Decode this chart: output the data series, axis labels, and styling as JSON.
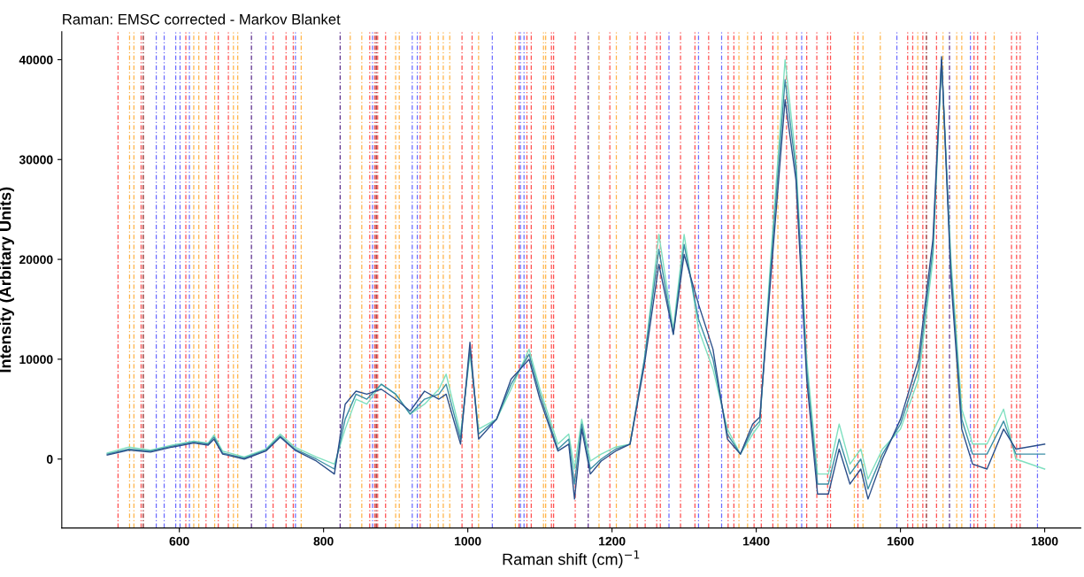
{
  "chart_data": {
    "type": "line",
    "title": "Raman: EMSC corrected - Markov Blanket",
    "xlabel": "Raman shift (cm)$^{−1}$",
    "ylabel": "Intensity (Arbitary Units)",
    "xlim": [
      437,
      1850
    ],
    "ylim": [
      -6900,
      42800
    ],
    "xticks": [
      600,
      800,
      1000,
      1200,
      1400,
      1600,
      1800
    ],
    "yticks": [
      0,
      10000,
      20000,
      30000,
      40000
    ],
    "grid": false,
    "legend": false,
    "marker": "none",
    "line_style": "solid",
    "x": [
      500,
      530,
      560,
      590,
      620,
      640,
      648,
      660,
      690,
      720,
      740,
      760,
      790,
      815,
      830,
      845,
      860,
      880,
      900,
      920,
      940,
      960,
      970,
      990,
      1003,
      1015,
      1040,
      1060,
      1085,
      1100,
      1125,
      1140,
      1148,
      1158,
      1170,
      1185,
      1205,
      1225,
      1245,
      1265,
      1285,
      1300,
      1320,
      1340,
      1360,
      1378,
      1395,
      1405,
      1420,
      1440,
      1455,
      1470,
      1485,
      1500,
      1515,
      1530,
      1545,
      1555,
      1575,
      1600,
      1625,
      1645,
      1657,
      1670,
      1685,
      1700,
      1720,
      1743,
      1760,
      1800
    ],
    "series": [
      {
        "color": "#7fe0c0",
        "values": [
          600,
          1200,
          900,
          1400,
          1800,
          1600,
          2400,
          800,
          200,
          1000,
          2500,
          1200,
          200,
          -500,
          3000,
          6000,
          5500,
          7500,
          6500,
          4500,
          5500,
          7000,
          8500,
          2500,
          10500,
          3000,
          4000,
          7000,
          11000,
          7000,
          1500,
          2500,
          -1000,
          4000,
          -200,
          500,
          1200,
          1500,
          10000,
          22500,
          13000,
          22500,
          13000,
          9000,
          3000,
          500,
          2500,
          3500,
          20000,
          40000,
          30000,
          10000,
          -1500,
          -1500,
          3500,
          -500,
          1000,
          -2000,
          1000,
          3000,
          8000,
          20000,
          40000,
          20000,
          5000,
          1500,
          1500,
          5000,
          0,
          -1000
        ]
      },
      {
        "color": "#3b8ea5",
        "values": [
          500,
          1000,
          800,
          1300,
          1700,
          1500,
          2200,
          600,
          100,
          900,
          2300,
          1000,
          0,
          -1000,
          4000,
          6500,
          6000,
          7500,
          6500,
          4500,
          6000,
          6500,
          7500,
          2000,
          11000,
          2500,
          4000,
          7500,
          10500,
          6500,
          1000,
          2000,
          -2500,
          3500,
          -1000,
          0,
          1000,
          1500,
          10000,
          21000,
          12500,
          21500,
          14000,
          10000,
          2500,
          500,
          3000,
          3800,
          19000,
          38000,
          29000,
          9000,
          -2500,
          -2500,
          2000,
          -1500,
          0,
          -3000,
          500,
          3500,
          9000,
          21000,
          40000,
          19000,
          4000,
          500,
          500,
          3800,
          500,
          500
        ]
      },
      {
        "color": "#2c4f8a",
        "values": [
          400,
          900,
          700,
          1200,
          1600,
          1400,
          2000,
          500,
          0,
          800,
          2200,
          900,
          -200,
          -1500,
          5500,
          6800,
          6500,
          7000,
          6000,
          4800,
          6800,
          6000,
          6500,
          1500,
          11700,
          2000,
          4000,
          8000,
          10000,
          6000,
          800,
          1500,
          -4000,
          3000,
          -1500,
          -200,
          800,
          1500,
          9500,
          19500,
          12500,
          20500,
          15500,
          11000,
          2000,
          500,
          3500,
          4200,
          18000,
          36000,
          28000,
          8000,
          -3500,
          -3500,
          1000,
          -2500,
          -1000,
          -4000,
          0,
          4000,
          10000,
          22000,
          40300,
          18000,
          3000,
          -500,
          -1000,
          3000,
          1000,
          1500
        ]
      }
    ],
    "ref_lines": [
      {
        "axis": "x",
        "value": 515,
        "color": "#ff4d4d",
        "line_style": "dashed"
      },
      {
        "axis": "x",
        "value": 531,
        "color": "#ffb347",
        "line_style": "dashed"
      },
      {
        "axis": "x",
        "value": 537,
        "color": "#ffb347",
        "line_style": "dashed"
      },
      {
        "axis": "x",
        "value": 547,
        "color": "#ff4d4d",
        "line_style": "dashed"
      },
      {
        "axis": "x",
        "value": 550,
        "color": "#8b1a1a",
        "line_style": "dashed"
      },
      {
        "axis": "x",
        "value": 568,
        "color": "#6a6aff",
        "line_style": "dashed"
      },
      {
        "axis": "x",
        "value": 579,
        "color": "#6a6aff",
        "line_style": "dashed"
      },
      {
        "axis": "x",
        "value": 595,
        "color": "#6a6aff",
        "line_style": "dashed"
      },
      {
        "axis": "x",
        "value": 601,
        "color": "#6a6aff",
        "line_style": "dashed"
      },
      {
        "axis": "x",
        "value": 609,
        "color": "#ff4d4d",
        "line_style": "dashed"
      },
      {
        "axis": "x",
        "value": 614,
        "color": "#6a6aff",
        "line_style": "dashed"
      },
      {
        "axis": "x",
        "value": 620,
        "color": "#ffb347",
        "line_style": "dashed"
      },
      {
        "axis": "x",
        "value": 627,
        "color": "#ffb347",
        "line_style": "dashed"
      },
      {
        "axis": "x",
        "value": 637,
        "color": "#ff4d4d",
        "line_style": "dashed"
      },
      {
        "axis": "x",
        "value": 649,
        "color": "#ffb347",
        "line_style": "dashed"
      },
      {
        "axis": "x",
        "value": 654,
        "color": "#ff4d4d",
        "line_style": "dashed"
      },
      {
        "axis": "x",
        "value": 668,
        "color": "#ff4d4d",
        "line_style": "dashed"
      },
      {
        "axis": "x",
        "value": 675,
        "color": "#ffb347",
        "line_style": "dashed"
      },
      {
        "axis": "x",
        "value": 681,
        "color": "#ffb347",
        "line_style": "dashed"
      },
      {
        "axis": "x",
        "value": 700,
        "color": "#5a2a8a",
        "line_style": "dashed"
      },
      {
        "axis": "x",
        "value": 720,
        "color": "#6a6aff",
        "line_style": "dashed"
      },
      {
        "axis": "x",
        "value": 730,
        "color": "#ff4d4d",
        "line_style": "dashed"
      },
      {
        "axis": "x",
        "value": 748,
        "color": "#ff4d4d",
        "line_style": "dashed"
      },
      {
        "axis": "x",
        "value": 758,
        "color": "#ff4d4d",
        "line_style": "dashed"
      },
      {
        "axis": "x",
        "value": 761,
        "color": "#6a6aff",
        "line_style": "dashed"
      },
      {
        "axis": "x",
        "value": 769,
        "color": "#ffb347",
        "line_style": "dashed"
      },
      {
        "axis": "x",
        "value": 823,
        "color": "#5a2a8a",
        "line_style": "dashed"
      },
      {
        "axis": "x",
        "value": 837,
        "color": "#ffb347",
        "line_style": "dashed"
      },
      {
        "axis": "x",
        "value": 853,
        "color": "#ffb347",
        "line_style": "dashed"
      },
      {
        "axis": "x",
        "value": 864,
        "color": "#ff4d4d",
        "line_style": "dashed"
      },
      {
        "axis": "x",
        "value": 868,
        "color": "#6a6aff",
        "line_style": "dashed"
      },
      {
        "axis": "x",
        "value": 871,
        "color": "#ff4d4d",
        "line_style": "dashed"
      },
      {
        "axis": "x",
        "value": 873,
        "color": "#8b1a1a",
        "line_style": "dashed"
      },
      {
        "axis": "x",
        "value": 875,
        "color": "#ff4d4d",
        "line_style": "dashed"
      },
      {
        "axis": "x",
        "value": 886,
        "color": "#ff4d4d",
        "line_style": "dashed"
      },
      {
        "axis": "x",
        "value": 900,
        "color": "#ffb347",
        "line_style": "dashed"
      },
      {
        "axis": "x",
        "value": 905,
        "color": "#ffb347",
        "line_style": "dashed"
      },
      {
        "axis": "x",
        "value": 923,
        "color": "#6a6aff",
        "line_style": "dashed"
      },
      {
        "axis": "x",
        "value": 930,
        "color": "#6a6aff",
        "line_style": "dashed"
      },
      {
        "axis": "x",
        "value": 934,
        "color": "#ff4d4d",
        "line_style": "dashed"
      },
      {
        "axis": "x",
        "value": 948,
        "color": "#ffb347",
        "line_style": "dashed"
      },
      {
        "axis": "x",
        "value": 959,
        "color": "#ffb347",
        "line_style": "dashed"
      },
      {
        "axis": "x",
        "value": 966,
        "color": "#ffb347",
        "line_style": "dashed"
      },
      {
        "axis": "x",
        "value": 975,
        "color": "#ffb347",
        "line_style": "dashed"
      },
      {
        "axis": "x",
        "value": 992,
        "color": "#ff4d4d",
        "line_style": "dashed"
      },
      {
        "axis": "x",
        "value": 1006,
        "color": "#ff4d4d",
        "line_style": "dashed"
      },
      {
        "axis": "x",
        "value": 1015,
        "color": "#ffb347",
        "line_style": "dashed"
      },
      {
        "axis": "x",
        "value": 1034,
        "color": "#6a6aff",
        "line_style": "dashed"
      },
      {
        "axis": "x",
        "value": 1066,
        "color": "#ffb347",
        "line_style": "dashed"
      },
      {
        "axis": "x",
        "value": 1071,
        "color": "#ff4d4d",
        "line_style": "dashed"
      },
      {
        "axis": "x",
        "value": 1073,
        "color": "#6a6aff",
        "line_style": "dashed"
      },
      {
        "axis": "x",
        "value": 1078,
        "color": "#6a6aff",
        "line_style": "dashed"
      },
      {
        "axis": "x",
        "value": 1082,
        "color": "#ff4d4d",
        "line_style": "dashed"
      },
      {
        "axis": "x",
        "value": 1088,
        "color": "#ff4d4d",
        "line_style": "dashed"
      },
      {
        "axis": "x",
        "value": 1105,
        "color": "#ffb347",
        "line_style": "dashed"
      },
      {
        "axis": "x",
        "value": 1108,
        "color": "#ffb347",
        "line_style": "dashed"
      },
      {
        "axis": "x",
        "value": 1116,
        "color": "#ff4d4d",
        "line_style": "dashed"
      },
      {
        "axis": "x",
        "value": 1119,
        "color": "#ff4d4d",
        "line_style": "dashed"
      },
      {
        "axis": "x",
        "value": 1149,
        "color": "#ff4d4d",
        "line_style": "dashed"
      },
      {
        "axis": "x",
        "value": 1167,
        "color": "#5a2a8a",
        "line_style": "dashed"
      },
      {
        "axis": "x",
        "value": 1182,
        "color": "#ffb347",
        "line_style": "dashed"
      },
      {
        "axis": "x",
        "value": 1197,
        "color": "#ff4d4d",
        "line_style": "dashed"
      },
      {
        "axis": "x",
        "value": 1206,
        "color": "#ffb347",
        "line_style": "dashed"
      },
      {
        "axis": "x",
        "value": 1225,
        "color": "#ffb347",
        "line_style": "dashed"
      },
      {
        "axis": "x",
        "value": 1235,
        "color": "#ff4d4d",
        "line_style": "dashed"
      },
      {
        "axis": "x",
        "value": 1246,
        "color": "#ff4d4d",
        "line_style": "dashed"
      },
      {
        "axis": "x",
        "value": 1262,
        "color": "#ff4d4d",
        "line_style": "dashed"
      },
      {
        "axis": "x",
        "value": 1267,
        "color": "#ff4d4d",
        "line_style": "dashed"
      },
      {
        "axis": "x",
        "value": 1279,
        "color": "#6a6aff",
        "line_style": "dashed"
      },
      {
        "axis": "x",
        "value": 1295,
        "color": "#ff4d4d",
        "line_style": "dashed"
      },
      {
        "axis": "x",
        "value": 1315,
        "color": "#ff4d4d",
        "line_style": "dashed"
      },
      {
        "axis": "x",
        "value": 1320,
        "color": "#6a6aff",
        "line_style": "dashed"
      },
      {
        "axis": "x",
        "value": 1334,
        "color": "#ff4d4d",
        "line_style": "dashed"
      },
      {
        "axis": "x",
        "value": 1352,
        "color": "#6a6aff",
        "line_style": "dashed"
      },
      {
        "axis": "x",
        "value": 1361,
        "color": "#ff4d4d",
        "line_style": "dashed"
      },
      {
        "axis": "x",
        "value": 1369,
        "color": "#ff4d4d",
        "line_style": "dashed"
      },
      {
        "axis": "x",
        "value": 1376,
        "color": "#ffb347",
        "line_style": "dashed"
      },
      {
        "axis": "x",
        "value": 1388,
        "color": "#ffb347",
        "line_style": "dashed"
      },
      {
        "axis": "x",
        "value": 1397,
        "color": "#ff4d4d",
        "line_style": "dashed"
      },
      {
        "axis": "x",
        "value": 1407,
        "color": "#ff4d4d",
        "line_style": "dashed"
      },
      {
        "axis": "x",
        "value": 1423,
        "color": "#ff4d4d",
        "line_style": "dashed"
      },
      {
        "axis": "x",
        "value": 1430,
        "color": "#ffb347",
        "line_style": "dashed"
      },
      {
        "axis": "x",
        "value": 1442,
        "color": "#ff4d4d",
        "line_style": "dashed"
      },
      {
        "axis": "x",
        "value": 1456,
        "color": "#ff4d4d",
        "line_style": "dashed"
      },
      {
        "axis": "x",
        "value": 1463,
        "color": "#6a6aff",
        "line_style": "dashed"
      },
      {
        "axis": "x",
        "value": 1470,
        "color": "#ff4d4d",
        "line_style": "dashed"
      },
      {
        "axis": "x",
        "value": 1484,
        "color": "#ff4d4d",
        "line_style": "dashed"
      },
      {
        "axis": "x",
        "value": 1499,
        "color": "#ff4d4d",
        "line_style": "dashed"
      },
      {
        "axis": "x",
        "value": 1503,
        "color": "#ff4d4d",
        "line_style": "dashed"
      },
      {
        "axis": "x",
        "value": 1536,
        "color": "#ffb347",
        "line_style": "dashed"
      },
      {
        "axis": "x",
        "value": 1541,
        "color": "#ff4d4d",
        "line_style": "dashed"
      },
      {
        "axis": "x",
        "value": 1548,
        "color": "#ffb347",
        "line_style": "dashed"
      },
      {
        "axis": "x",
        "value": 1572,
        "color": "#ffb347",
        "line_style": "dashed"
      },
      {
        "axis": "x",
        "value": 1595,
        "color": "#6a6aff",
        "line_style": "dashed"
      },
      {
        "axis": "x",
        "value": 1610,
        "color": "#ff4d4d",
        "line_style": "dashed"
      },
      {
        "axis": "x",
        "value": 1617,
        "color": "#ff4d4d",
        "line_style": "dashed"
      },
      {
        "axis": "x",
        "value": 1624,
        "color": "#ffb347",
        "line_style": "dashed"
      },
      {
        "axis": "x",
        "value": 1631,
        "color": "#ff4d4d",
        "line_style": "dashed"
      },
      {
        "axis": "x",
        "value": 1636,
        "color": "#8b1a1a",
        "line_style": "dashed"
      },
      {
        "axis": "x",
        "value": 1650,
        "color": "#ff4d4d",
        "line_style": "dashed"
      },
      {
        "axis": "x",
        "value": 1659,
        "color": "#ffb347",
        "line_style": "dashed"
      },
      {
        "axis": "x",
        "value": 1668,
        "color": "#5a2a8a",
        "line_style": "dashed"
      },
      {
        "axis": "x",
        "value": 1678,
        "color": "#ffb347",
        "line_style": "dashed"
      },
      {
        "axis": "x",
        "value": 1685,
        "color": "#ffb347",
        "line_style": "dashed"
      },
      {
        "axis": "x",
        "value": 1697,
        "color": "#6a6aff",
        "line_style": "dashed"
      },
      {
        "axis": "x",
        "value": 1702,
        "color": "#ff4d4d",
        "line_style": "dashed"
      },
      {
        "axis": "x",
        "value": 1707,
        "color": "#ff4d4d",
        "line_style": "dashed"
      },
      {
        "axis": "x",
        "value": 1718,
        "color": "#ff4d4d",
        "line_style": "dashed"
      },
      {
        "axis": "x",
        "value": 1730,
        "color": "#ffb347",
        "line_style": "dashed"
      },
      {
        "axis": "x",
        "value": 1754,
        "color": "#ff4d4d",
        "line_style": "dashed"
      },
      {
        "axis": "x",
        "value": 1761,
        "color": "#ff4d4d",
        "line_style": "dashed"
      },
      {
        "axis": "x",
        "value": 1766,
        "color": "#ff4d4d",
        "line_style": "dashed"
      },
      {
        "axis": "x",
        "value": 1790,
        "color": "#6a6aff",
        "line_style": "dashed"
      }
    ]
  }
}
